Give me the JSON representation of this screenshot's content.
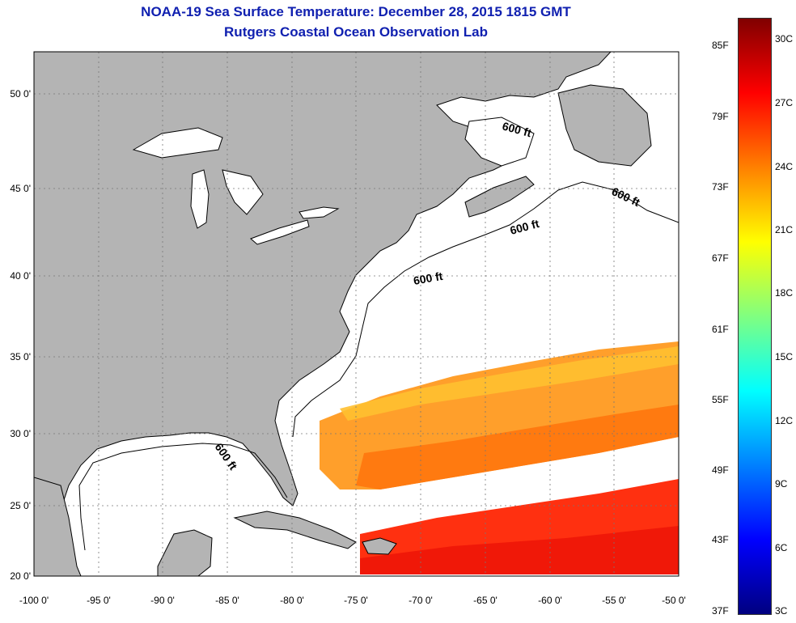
{
  "title": {
    "line1": "NOAA-19 Sea Surface Temperature:  December 28, 2015 1815 GMT",
    "line2": "Rutgers Coastal Ocean Observation Lab"
  },
  "map": {
    "lon_labels": [
      "-100 0'",
      "-95 0'",
      "-90 0'",
      "-85 0'",
      "-80 0'",
      "-75 0'",
      "-70 0'",
      "-65 0'",
      "-60 0'",
      "-55 0'",
      "-50 0'"
    ],
    "lat_labels": [
      "50 0'",
      "45 0'",
      "40 0'",
      "35 0'",
      "30 0'",
      "25 0'",
      "20 0'"
    ],
    "contour_label": "600 ft",
    "land_color": "#b4b4b4",
    "grid": "dotted"
  },
  "colorbar": {
    "fahrenheit": [
      "85F",
      "79F",
      "73F",
      "67F",
      "61F",
      "55F",
      "49F",
      "43F",
      "37F"
    ],
    "celsius": [
      "30C",
      "27C",
      "24C",
      "21C",
      "18C",
      "15C",
      "12C",
      "9C",
      "6C",
      "3C"
    ],
    "colors": [
      "#800000",
      "#ff0000",
      "#ff8000",
      "#ffff00",
      "#80ff80",
      "#00ffff",
      "#0080ff",
      "#0000ff",
      "#000080"
    ]
  }
}
